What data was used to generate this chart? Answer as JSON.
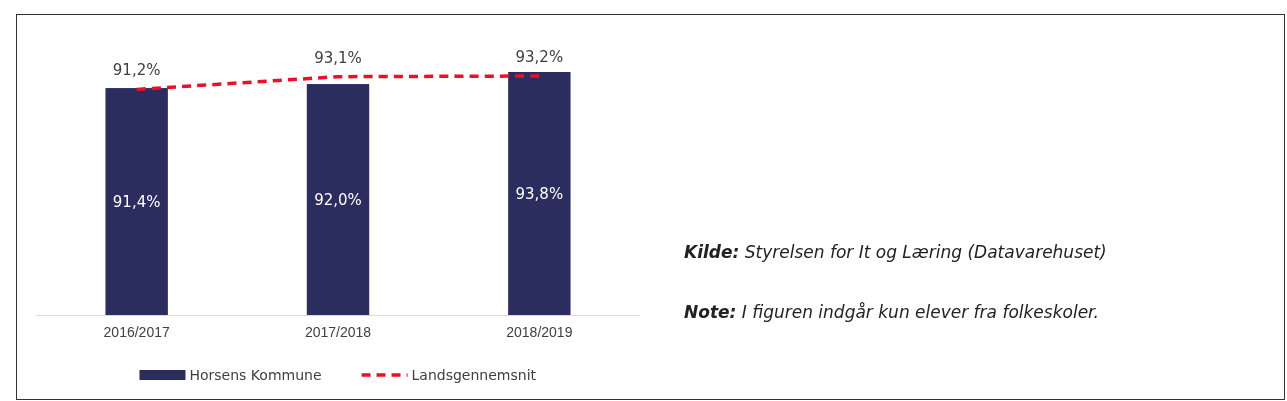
{
  "chart_data": {
    "type": "bar",
    "categories": [
      "2016/2017",
      "2017/2018",
      "2018/2019"
    ],
    "series": [
      {
        "name": "Horsens Kommune",
        "color": "#2b2d5e",
        "values": [
          91.4,
          92.0,
          93.8
        ],
        "value_labels": [
          "91,4%",
          "92,0%",
          "93,8%"
        ]
      },
      {
        "name": "Landsgennemsnit",
        "type": "line",
        "color": "#e8112d",
        "line_style": "dashed",
        "values": [
          91.2,
          93.1,
          93.2
        ],
        "value_labels": [
          "91,2%",
          "93,1%",
          "93,2%"
        ]
      }
    ],
    "ylim": [
      57.5,
      93.8
    ],
    "tick_labels": "x",
    "legend": "bottom",
    "grid": false,
    "annotations": [
      "Kilde: Styrelsen for It og Læring (Datavarehuset)",
      "Note: I figuren indgår kun elever fra folkeskoler."
    ]
  }
}
